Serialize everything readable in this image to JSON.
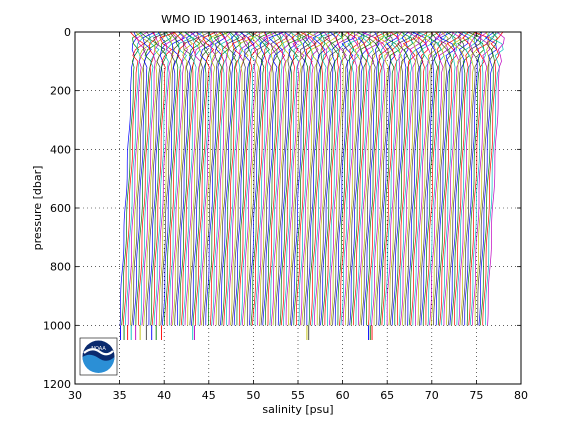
{
  "chart_data": {
    "type": "line",
    "title": "WMO ID 1901463, internal ID 3400, 23–Oct–2018",
    "xlabel": "salinity [psu]",
    "ylabel": "pressure [dbar]",
    "xlim": [
      30,
      80
    ],
    "ylim": [
      1200,
      0
    ],
    "y_axis_reversed": true,
    "grid": true,
    "x_ticks": [
      "30",
      "35",
      "40",
      "45",
      "50",
      "55",
      "60",
      "65",
      "70",
      "75",
      "80"
    ],
    "y_ticks": [
      "0",
      "200",
      "400",
      "600",
      "800",
      "1000",
      "1200"
    ],
    "series_colors": [
      "#0000ff",
      "#008000",
      "#ff0000",
      "#00bfbf",
      "#bf00bf",
      "#bfbf00",
      "#404040"
    ],
    "profile_count": 180,
    "first_profile_deep_salinity": 35.0,
    "last_profile_deep_salinity": 76.2,
    "profile_offset_step": 0.23,
    "surface_excursion_psu": 1.6,
    "profile_bottom_pressure": 1000,
    "spike_salinities": [
      35.1,
      35.5,
      35.9,
      36.3,
      36.8,
      37.3,
      38.0,
      38.6,
      39.1,
      39.7,
      43.2,
      43.4,
      56.0,
      56.2,
      62.9,
      63.1,
      63.3
    ],
    "spike_bottom_pressure": 1050
  },
  "logo": {
    "name": "NOAA",
    "text": "NOAA"
  },
  "colors": {
    "axes": "#000000",
    "grid": "#000000",
    "background": "#ffffff",
    "logo_blue": "#0a64b4",
    "logo_navy": "#0a2a6e"
  }
}
